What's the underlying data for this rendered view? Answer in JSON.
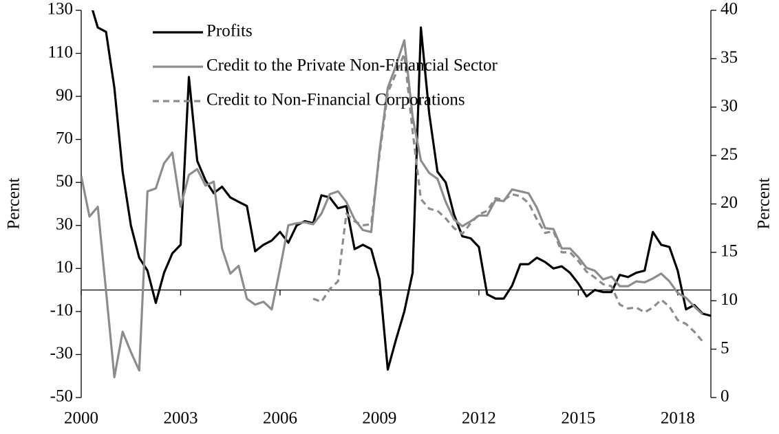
{
  "chart_data": {
    "type": "line",
    "ylabel": "Percent",
    "y2label": "Percent",
    "x": [
      2000,
      2000.25,
      2000.5,
      2000.75,
      2001,
      2001.25,
      2001.5,
      2001.75,
      2002,
      2002.25,
      2002.5,
      2002.75,
      2003,
      2003.25,
      2003.5,
      2003.75,
      2004,
      2004.25,
      2004.5,
      2004.75,
      2005,
      2005.25,
      2005.5,
      2005.75,
      2006,
      2006.25,
      2006.5,
      2006.75,
      2007,
      2007.25,
      2007.5,
      2007.75,
      2008,
      2008.25,
      2008.5,
      2008.75,
      2009,
      2009.25,
      2009.5,
      2009.75,
      2010,
      2010.25,
      2010.5,
      2010.75,
      2011,
      2011.25,
      2011.5,
      2011.75,
      2012,
      2012.25,
      2012.5,
      2012.75,
      2013,
      2013.25,
      2013.5,
      2013.75,
      2014,
      2014.25,
      2014.5,
      2014.75,
      2015,
      2015.25,
      2015.5,
      2015.75,
      2016,
      2016.25,
      2016.5,
      2016.75,
      2017,
      2017.25,
      2017.5,
      2017.75,
      2018,
      2018.25,
      2018.5,
      2018.75,
      2019
    ],
    "series": [
      {
        "name": "Profits",
        "color": "#000000",
        "axis": "y",
        "values": [
          null,
          135,
          122,
          120,
          94,
          55,
          30,
          15,
          9,
          -6,
          8,
          17,
          21,
          99,
          60,
          51,
          45,
          48,
          43,
          41,
          39,
          18,
          21,
          23,
          27,
          22,
          30,
          32,
          31,
          44,
          43,
          38,
          39,
          19,
          21,
          19,
          5,
          -37,
          -23,
          -10,
          8,
          122,
          82,
          55,
          50,
          35,
          25,
          24,
          20,
          -2,
          -4,
          -4,
          2,
          12,
          12,
          15,
          13,
          10,
          11,
          8,
          3,
          -3,
          0,
          -1,
          -1,
          7,
          6,
          8,
          9,
          27,
          21,
          20,
          9,
          -9,
          -7,
          -11,
          -12
        ]
      },
      {
        "name": "Credit to the Private Non-Financial Sector",
        "color": "#8c8c8c",
        "axis": "y2",
        "values": [
          22.9,
          18.7,
          19.7,
          11,
          2.1,
          6.8,
          4.7,
          2.8,
          21.3,
          21.6,
          24.2,
          25.3,
          19.7,
          23.0,
          23.6,
          21.9,
          22.3,
          15.4,
          12.8,
          13.6,
          10.2,
          9.6,
          9.9,
          9.1,
          13.3,
          17.8,
          18.0,
          18.1,
          17.9,
          19.0,
          21.0,
          21.3,
          20.2,
          18.4,
          17.3,
          17.1,
          25.4,
          32,
          34.3,
          36.9,
          29,
          24.5,
          23.2,
          22.6,
          20.2,
          18.4,
          17.7,
          18.2,
          18.8,
          18.8,
          20.4,
          20.3,
          21.5,
          21.3,
          21.1,
          19.6,
          17.5,
          17.4,
          15.4,
          15.4,
          14.5,
          13.4,
          13.1,
          12.2,
          12.5,
          11.5,
          11.5,
          12.0,
          11.9,
          12.3,
          12.8,
          12.0,
          10.8,
          10.3,
          9.4,
          8.6,
          null
        ]
      },
      {
        "name": "Credit to Non-Financial Corporations",
        "color": "#8c8c8c",
        "axis": "y2",
        "dash": true,
        "values": [
          null,
          null,
          null,
          null,
          null,
          null,
          null,
          null,
          null,
          null,
          null,
          null,
          null,
          null,
          null,
          null,
          null,
          null,
          null,
          null,
          null,
          null,
          null,
          null,
          null,
          null,
          null,
          null,
          10.2,
          9.9,
          11.2,
          12.0,
          19.0,
          18.2,
          17.8,
          17.9,
          25.0,
          31.5,
          33.5,
          35.5,
          27.5,
          20.5,
          19.5,
          19.3,
          18.5,
          17.5,
          16.9,
          18.0,
          18.9,
          19.3,
          20.6,
          20.4,
          21.0,
          20.8,
          20.1,
          18.4,
          17.0,
          17.2,
          15.0,
          15.0,
          14.1,
          13.0,
          12.4,
          11.7,
          11.5,
          9.6,
          9.2,
          9.3,
          8.8,
          9.3,
          10.1,
          9.4,
          8.0,
          7.6,
          6.8,
          5.8,
          null
        ]
      }
    ],
    "xlim": [
      2000,
      2019
    ],
    "xticks": [
      2000,
      2003,
      2006,
      2009,
      2012,
      2015,
      2018
    ],
    "ylim": [
      -50,
      130
    ],
    "yticks": [
      -50,
      -30,
      -10,
      10,
      30,
      50,
      70,
      90,
      110,
      130
    ],
    "y2lim": [
      0,
      40
    ],
    "y2ticks": [
      0,
      5,
      10,
      15,
      20,
      25,
      30,
      35,
      40
    ],
    "legend": "upper left"
  }
}
